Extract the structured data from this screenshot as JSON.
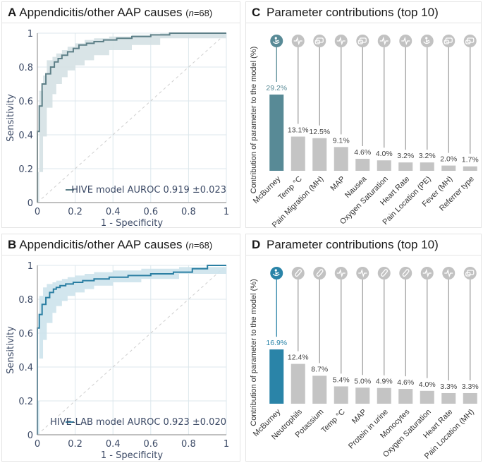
{
  "colors": {
    "roc_a": "#5e8088",
    "roc_a_band": "#d5e1e4",
    "roc_b": "#2b7fa3",
    "roc_b_band": "#cde3ec",
    "grid": "#dce7ec",
    "bar_highlight_c": "#588a96",
    "bar_highlight_d": "#2a84a8",
    "bar_gray": "#c4c4c4",
    "icon_gray": "#c2c2c2"
  },
  "chart_data": [
    {
      "id": "A",
      "type": "line",
      "panel_letter": "A",
      "title": "Appendicitis/other AAP causes",
      "n_label": "n",
      "n_value": "=68",
      "xlabel": "1 - Specificity",
      "ylabel": "Sensitivity",
      "xlim": [
        0,
        1
      ],
      "ylim": [
        0,
        1
      ],
      "xticks": [
        "0",
        "0.2",
        "0.4",
        "0.6",
        "0.8",
        "1"
      ],
      "yticks": [
        "0",
        "0.2",
        "0.4",
        "0.6",
        "0.8",
        "1"
      ],
      "grid": true,
      "legend": "HIVE model AUROC 0.919 ±0.023",
      "legend_position": "bottom-right",
      "diagonal": true,
      "series": [
        {
          "name": "HIVE model",
          "x": [
            0,
            0.0,
            0.01,
            0.01,
            0.025,
            0.025,
            0.045,
            0.045,
            0.07,
            0.07,
            0.09,
            0.09,
            0.11,
            0.11,
            0.13,
            0.13,
            0.16,
            0.16,
            0.19,
            0.19,
            0.22,
            0.22,
            0.26,
            0.26,
            0.3,
            0.3,
            0.35,
            0.35,
            0.42,
            0.42,
            0.5,
            0.5,
            0.6,
            0.6,
            0.7,
            0.7,
            1.0
          ],
          "y": [
            0,
            0.42,
            0.42,
            0.57,
            0.57,
            0.7,
            0.7,
            0.76,
            0.76,
            0.8,
            0.8,
            0.83,
            0.83,
            0.85,
            0.85,
            0.87,
            0.87,
            0.89,
            0.89,
            0.91,
            0.91,
            0.93,
            0.93,
            0.94,
            0.94,
            0.95,
            0.95,
            0.96,
            0.96,
            0.97,
            0.97,
            0.98,
            0.98,
            0.99,
            0.99,
            1.0,
            1.0
          ],
          "upper": [
            0.18,
            0.66,
            0.75,
            0.84,
            0.86,
            0.88,
            0.9,
            0.92,
            0.94,
            0.96,
            0.97,
            0.98,
            0.99,
            1.0,
            1.0
          ],
          "lower": [
            0.0,
            0.18,
            0.39,
            0.56,
            0.64,
            0.7,
            0.74,
            0.78,
            0.81,
            0.84,
            0.87,
            0.9,
            0.93,
            0.97,
            1.0
          ],
          "band_x": [
            0,
            0.01,
            0.03,
            0.05,
            0.08,
            0.1,
            0.13,
            0.16,
            0.2,
            0.25,
            0.3,
            0.38,
            0.5,
            0.65,
            1.0
          ]
        }
      ]
    },
    {
      "id": "B",
      "type": "line",
      "panel_letter": "B",
      "title": "Appendicitis/other AAP causes",
      "n_label": "n",
      "n_value": "=68",
      "xlabel": "1 - Specificity",
      "ylabel": "Sensitivity",
      "xlim": [
        0,
        1
      ],
      "ylim": [
        0,
        1
      ],
      "xticks": [
        "0",
        "0.2",
        "0.4",
        "0.6",
        "0.8",
        "1"
      ],
      "yticks": [
        "0",
        "0.2",
        "0.4",
        "0.6",
        "0.8",
        "1"
      ],
      "grid": true,
      "legend": "HIVE-LAB model AUROC 0.923 ±0.020",
      "legend_position": "bottom-right",
      "diagonal": true,
      "series": [
        {
          "name": "HIVE-LAB model",
          "x": [
            0,
            0.0,
            0.01,
            0.01,
            0.025,
            0.025,
            0.045,
            0.045,
            0.065,
            0.065,
            0.085,
            0.085,
            0.1,
            0.1,
            0.12,
            0.12,
            0.15,
            0.15,
            0.19,
            0.19,
            0.24,
            0.24,
            0.3,
            0.3,
            0.38,
            0.38,
            0.48,
            0.48,
            0.6,
            0.6,
            0.72,
            0.72,
            0.82,
            0.82,
            0.9,
            0.9,
            1.0
          ],
          "y": [
            0,
            0.63,
            0.63,
            0.71,
            0.71,
            0.77,
            0.77,
            0.81,
            0.81,
            0.84,
            0.84,
            0.86,
            0.86,
            0.87,
            0.87,
            0.88,
            0.88,
            0.89,
            0.89,
            0.9,
            0.9,
            0.91,
            0.91,
            0.92,
            0.92,
            0.93,
            0.93,
            0.94,
            0.94,
            0.95,
            0.95,
            0.96,
            0.96,
            0.98,
            0.98,
            1.0,
            1.0
          ],
          "upper": [
            0.2,
            0.82,
            0.87,
            0.89,
            0.9,
            0.91,
            0.92,
            0.93,
            0.94,
            0.95,
            0.96,
            0.97,
            0.98,
            0.99,
            1.0
          ],
          "lower": [
            0.0,
            0.45,
            0.56,
            0.66,
            0.72,
            0.76,
            0.79,
            0.82,
            0.84,
            0.86,
            0.88,
            0.9,
            0.92,
            0.95,
            1.0
          ],
          "band_x": [
            0,
            0.01,
            0.03,
            0.05,
            0.08,
            0.1,
            0.13,
            0.16,
            0.2,
            0.25,
            0.3,
            0.4,
            0.55,
            0.75,
            1.0
          ]
        }
      ]
    },
    {
      "id": "C",
      "type": "bar",
      "panel_letter": "C",
      "title": "Parameter contributions (top 10)",
      "ylabel": "Contribution of parameter to the model (%)",
      "categories": [
        "McBurney",
        "Temp °C",
        "Pain Migration (MH)",
        "MAP",
        "Nausea",
        "Oxygen Saturation",
        "Heart Rate",
        "Pain Location (PE)",
        "Fever (MH)",
        "Referrer type"
      ],
      "values": [
        29.2,
        13.1,
        12.5,
        9.1,
        4.6,
        4.0,
        3.2,
        3.2,
        2.0,
        1.7
      ],
      "value_labels": [
        "29.2%",
        "13.1%",
        "12.5%",
        "9.1%",
        "4.6%",
        "4.0%",
        "3.2%",
        "3.2%",
        "2.0%",
        "1.7%"
      ],
      "icons": [
        "hand-palpation-icon",
        "vital-signs-icon",
        "history-chat-icon",
        "vital-signs-icon",
        "history-chat-icon",
        "vital-signs-icon",
        "vital-signs-icon",
        "hand-palpation-icon",
        "history-chat-icon",
        "history-chat-icon"
      ],
      "highlight_index": 0
    },
    {
      "id": "D",
      "type": "bar",
      "panel_letter": "D",
      "title": "Parameter contributions (top 10)",
      "ylabel": "Contribution of parameter to the model (%)",
      "categories": [
        "McBurney",
        "Neutrophils",
        "Potassium",
        "Temp °C",
        "MAP",
        "Protein in urine",
        "Monocytes",
        "Oxygen Saturation",
        "Heart Rate",
        "Pain Location (MH)"
      ],
      "values": [
        16.9,
        12.4,
        8.7,
        5.4,
        5.0,
        4.9,
        4.6,
        4.0,
        3.3,
        3.3
      ],
      "value_labels": [
        "16.9%",
        "12.4%",
        "8.7%",
        "5.4%",
        "5.0%",
        "4.9%",
        "4.6%",
        "4.0%",
        "3.3%",
        "3.3%"
      ],
      "icons": [
        "hand-palpation-icon",
        "lab-test-tube-icon",
        "lab-test-tube-icon",
        "vital-signs-icon",
        "vital-signs-icon",
        "lab-test-tube-icon",
        "lab-test-tube-icon",
        "vital-signs-icon",
        "vital-signs-icon",
        "history-chat-icon"
      ],
      "highlight_index": 0
    }
  ]
}
